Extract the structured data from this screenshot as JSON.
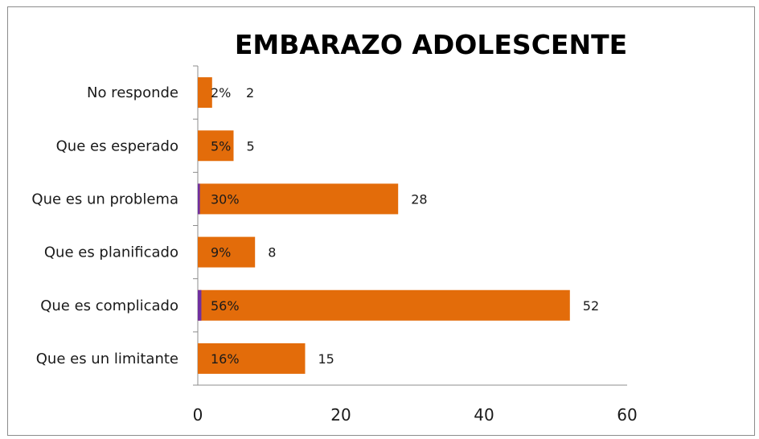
{
  "chart_data": {
    "type": "bar",
    "orientation": "horizontal",
    "title": "EMBARAZO ADOLESCENTE",
    "xlabel": "",
    "ylabel": "",
    "xlim": [
      0,
      60
    ],
    "xticks": [
      0,
      20,
      40,
      60
    ],
    "grid": false,
    "legend": "none",
    "categories": [
      "No responde",
      "Que es esperado",
      "Que es un problema",
      "Que es planificado",
      "Que es complicado",
      "Que es un limitante"
    ],
    "series": [
      {
        "values": [
          2,
          5,
          28,
          8,
          52,
          15
        ],
        "percent_labels": [
          "2%",
          "5%",
          "30%",
          "9%",
          "56%",
          "16%"
        ],
        "color": "#e36c0a"
      },
      {
        "values": [
          0,
          0,
          0.3,
          0,
          0.5,
          0
        ],
        "color": "#7030a0"
      }
    ]
  }
}
